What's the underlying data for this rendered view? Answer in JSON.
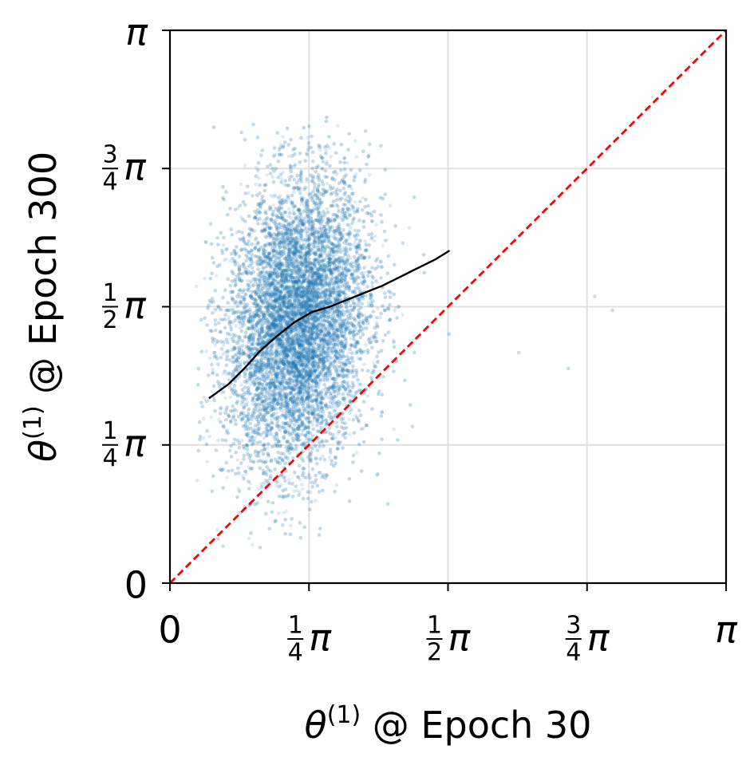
{
  "chart_data": {
    "type": "scatter",
    "xlabel": {
      "symbol": "θ",
      "superscript": "(1)",
      "text": " @ Epoch 30"
    },
    "ylabel": {
      "symbol": "θ",
      "superscript": "(1)",
      "text": " @ Epoch 300"
    },
    "xlim": [
      0,
      3.14159
    ],
    "ylim": [
      0,
      3.14159
    ],
    "grid": true,
    "x_ticks": [
      {
        "value": 0,
        "label": "0"
      },
      {
        "value": 0.7854,
        "num": "1",
        "den": "4",
        "sym": "π"
      },
      {
        "value": 1.5708,
        "num": "1",
        "den": "2",
        "sym": "π"
      },
      {
        "value": 2.3562,
        "num": "3",
        "den": "4",
        "sym": "π"
      },
      {
        "value": 3.14159,
        "label": "π"
      }
    ],
    "y_ticks": [
      {
        "value": 0,
        "label": "0"
      },
      {
        "value": 0.7854,
        "num": "1",
        "den": "4",
        "sym": "π"
      },
      {
        "value": 1.5708,
        "num": "1",
        "den": "2",
        "sym": "π"
      },
      {
        "value": 2.3562,
        "num": "3",
        "den": "4",
        "sym": "π"
      },
      {
        "value": 3.14159,
        "label": "π"
      }
    ],
    "series": [
      {
        "kind": "scatter",
        "color": "#1f77b4",
        "alpha": 0.15,
        "n_points": 12000,
        "x_range": [
          0.15,
          1.85
        ],
        "y_range": [
          0.2,
          2.65
        ],
        "x_center": 0.72,
        "y_center": 1.48,
        "outliers": [
          [
            2.4,
            1.63
          ],
          [
            2.5,
            1.55
          ],
          [
            2.25,
            1.22
          ],
          [
            1.97,
            1.31
          ],
          [
            1.37,
            0.89
          ],
          [
            0.3,
            0.21
          ]
        ]
      },
      {
        "kind": "line",
        "color": "#000000",
        "x": [
          0.22,
          0.33,
          0.42,
          0.51,
          0.6,
          0.7,
          0.8,
          0.9,
          1.0,
          1.1,
          1.2,
          1.3,
          1.4,
          1.5,
          1.58
        ],
        "y": [
          1.05,
          1.13,
          1.22,
          1.32,
          1.4,
          1.48,
          1.54,
          1.57,
          1.61,
          1.65,
          1.69,
          1.74,
          1.79,
          1.84,
          1.89
        ]
      },
      {
        "kind": "identity",
        "color": "#ff0000",
        "style": "dashed",
        "x": [
          0,
          3.14159
        ],
        "y": [
          0,
          3.14159
        ]
      }
    ]
  }
}
